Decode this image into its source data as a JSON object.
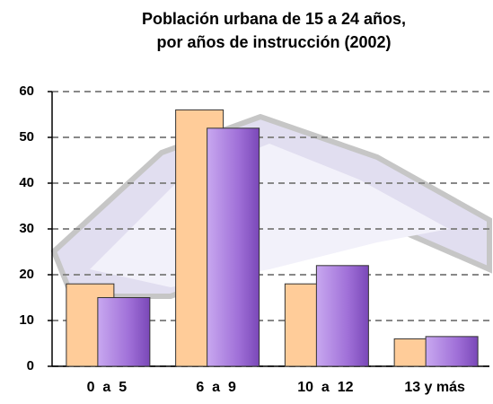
{
  "chart_data": {
    "type": "bar",
    "title": [
      "Población urbana de 15 a 24 años,",
      "por años de instrucción (2002)"
    ],
    "categories": [
      "0  a  5",
      "6  a  9",
      "10  a  12",
      "13 y más"
    ],
    "series": [
      {
        "color": "#ffcc99",
        "values": [
          18,
          56,
          18,
          6
        ]
      },
      {
        "color": "#a070d8",
        "values": [
          15,
          52,
          22,
          6.5
        ]
      }
    ],
    "ylim": [
      0,
      60
    ],
    "yticks": [
      0,
      10,
      20,
      30,
      40,
      50,
      60
    ],
    "grid": true
  }
}
